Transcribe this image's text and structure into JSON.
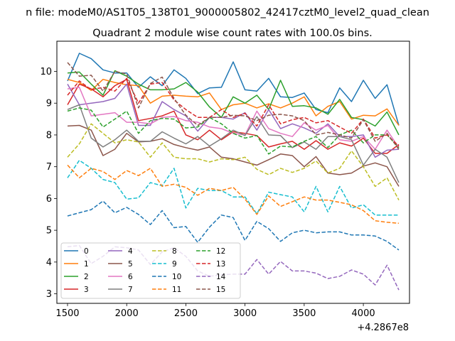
{
  "chart_data": {
    "type": "line",
    "suptitle": "n file: modeM0/AS1T05_138T01_9000005802_42417cztM0_level2_quad_clean",
    "title": "Quadrant 2 module wise count rates with 100.0s bins.",
    "xlabel": "",
    "ylabel": "",
    "x_offset_label": "+4.2867e8",
    "xlim": [
      1410,
      4390
    ],
    "ylim": [
      2.7,
      10.95
    ],
    "xticks": [
      1500,
      2000,
      2500,
      3000,
      3500,
      4000
    ],
    "xtick_labels": [
      "1500",
      "2000",
      "2500",
      "3000",
      "3500",
      "4000"
    ],
    "yticks": [
      3,
      4,
      5,
      6,
      7,
      8,
      9,
      10
    ],
    "ytick_labels": [
      "3",
      "4",
      "5",
      "6",
      "7",
      "8",
      "9",
      "10"
    ],
    "grid": false,
    "legend_placement": "lower-left",
    "legend_columns": 4,
    "x": [
      1500,
      1600,
      1700,
      1800,
      1900,
      2000,
      2100,
      2200,
      2300,
      2400,
      2500,
      2600,
      2700,
      2800,
      2900,
      3000,
      3100,
      3200,
      3300,
      3400,
      3500,
      3600,
      3700,
      3800,
      3900,
      4000,
      4100,
      4200,
      4300
    ],
    "series": [
      {
        "name": "0",
        "color": "#1f77b4",
        "dash": "solid",
        "values": [
          9.7,
          10.57,
          10.4,
          10.05,
          9.95,
          9.95,
          9.5,
          9.83,
          9.55,
          10.05,
          9.78,
          9.3,
          9.48,
          9.5,
          10.3,
          9.42,
          9.38,
          9.78,
          9.2,
          9.18,
          9.32,
          8.8,
          8.7,
          9.48,
          9.05,
          9.72,
          9.15,
          9.58,
          8.3
        ]
      },
      {
        "name": "1",
        "color": "#ff7f0e",
        "dash": "solid",
        "values": [
          9.75,
          9.65,
          9.4,
          9.75,
          9.65,
          9.58,
          9.55,
          9.0,
          9.22,
          9.25,
          9.22,
          9.2,
          9.32,
          8.8,
          8.95,
          9.0,
          8.85,
          8.98,
          8.85,
          9.0,
          9.2,
          8.6,
          8.9,
          9.05,
          8.5,
          8.62,
          8.6,
          8.82,
          8.3
        ]
      },
      {
        "name": "2",
        "color": "#2ca02c",
        "dash": "solid",
        "values": [
          9.95,
          9.98,
          9.6,
          9.25,
          10.02,
          9.85,
          9.6,
          9.42,
          9.42,
          9.45,
          9.65,
          9.35,
          8.88,
          8.55,
          9.2,
          9.0,
          9.25,
          8.8,
          9.72,
          8.9,
          8.92,
          8.85,
          8.65,
          9.12,
          8.55,
          8.48,
          8.28,
          8.72,
          8.0
        ]
      },
      {
        "name": "3",
        "color": "#d62728",
        "dash": "solid",
        "values": [
          8.95,
          9.6,
          9.45,
          9.2,
          9.55,
          9.75,
          8.45,
          8.52,
          8.6,
          8.75,
          8.0,
          7.85,
          8.15,
          7.85,
          8.1,
          8.05,
          7.98,
          7.62,
          7.72,
          7.8,
          7.55,
          7.82,
          7.55,
          7.75,
          7.65,
          7.9,
          7.42,
          7.42,
          7.7
        ]
      },
      {
        "name": "4",
        "color": "#9467bd",
        "dash": "solid",
        "values": [
          9.6,
          8.95,
          9.0,
          9.05,
          9.15,
          9.6,
          8.3,
          8.3,
          9.05,
          8.8,
          8.6,
          8.12,
          8.55,
          8.55,
          8.5,
          8.7,
          8.15,
          8.8,
          8.2,
          8.35,
          8.22,
          8.05,
          8.35,
          7.95,
          7.95,
          8.0,
          7.3,
          7.52,
          7.55
        ]
      },
      {
        "name": "5",
        "color": "#8c564b",
        "dash": "solid",
        "values": [
          8.28,
          8.3,
          8.15,
          7.35,
          7.55,
          8.05,
          7.78,
          7.8,
          7.88,
          7.7,
          7.6,
          7.52,
          7.62,
          7.3,
          7.25,
          7.15,
          7.05,
          7.22,
          7.4,
          7.35,
          7.0,
          7.32,
          6.8,
          6.75,
          6.8,
          7.02,
          7.12,
          7.0,
          6.38
        ]
      },
      {
        "name": "6",
        "color": "#e377c2",
        "dash": "solid",
        "values": [
          9.45,
          9.5,
          8.6,
          8.65,
          8.7,
          8.4,
          8.4,
          8.35,
          8.55,
          8.58,
          8.45,
          8.4,
          8.25,
          8.2,
          8.05,
          8.0,
          8.75,
          8.2,
          8.05,
          7.95,
          8.38,
          8.15,
          8.3,
          7.85,
          7.8,
          7.95,
          7.55,
          8.15,
          7.6
        ]
      },
      {
        "name": "7",
        "color": "#7f7f7f",
        "dash": "solid",
        "values": [
          8.8,
          8.95,
          7.9,
          7.62,
          7.85,
          8.15,
          7.8,
          7.8,
          8.1,
          7.9,
          7.72,
          7.95,
          7.65,
          7.88,
          8.15,
          7.98,
          8.58,
          8.0,
          7.98,
          7.6,
          7.78,
          7.55,
          7.95,
          7.95,
          7.85,
          7.05,
          7.55,
          7.3,
          6.5
        ]
      },
      {
        "name": "8",
        "color": "#bcbd22",
        "dash": "dashed",
        "values": [
          7.3,
          7.72,
          8.35,
          8.05,
          7.75,
          7.85,
          7.78,
          7.3,
          7.75,
          7.3,
          7.25,
          7.25,
          7.15,
          7.25,
          7.22,
          7.3,
          6.92,
          6.75,
          6.95,
          6.82,
          6.95,
          7.18,
          6.8,
          6.95,
          7.5,
          7.0,
          6.38,
          6.65,
          5.95
        ]
      },
      {
        "name": "9",
        "color": "#17becf",
        "dash": "dashed",
        "values": [
          6.65,
          7.2,
          6.95,
          6.6,
          6.5,
          5.98,
          6.02,
          6.5,
          6.4,
          6.95,
          5.7,
          6.32,
          6.25,
          6.25,
          6.05,
          6.05,
          5.52,
          6.2,
          6.12,
          6.05,
          5.58,
          6.38,
          5.58,
          6.38,
          5.7,
          5.8,
          5.48,
          5.48,
          5.48
        ]
      },
      {
        "name": "10",
        "color": "#1f77b4",
        "dash": "dashed",
        "values": [
          5.45,
          5.55,
          5.65,
          5.92,
          5.55,
          5.72,
          5.5,
          5.18,
          5.62,
          5.08,
          5.12,
          4.62,
          5.1,
          5.48,
          5.4,
          4.68,
          5.28,
          5.05,
          4.65,
          4.92,
          5.0,
          4.92,
          4.95,
          4.95,
          4.85,
          4.85,
          4.82,
          4.65,
          4.38
        ]
      },
      {
        "name": "11",
        "color": "#ff7f0e",
        "dash": "dashed",
        "values": [
          7.05,
          6.65,
          6.95,
          6.85,
          6.6,
          6.88,
          6.72,
          6.95,
          6.38,
          6.45,
          6.35,
          6.1,
          6.32,
          6.25,
          6.35,
          5.98,
          5.5,
          6.08,
          5.75,
          5.9,
          6.05,
          5.95,
          5.95,
          5.88,
          5.8,
          5.62,
          5.3,
          5.25,
          5.22
        ]
      },
      {
        "name": "12",
        "color": "#2ca02c",
        "dash": "dashed",
        "values": [
          8.75,
          8.85,
          8.78,
          8.25,
          8.5,
          8.75,
          8.05,
          8.45,
          8.52,
          8.5,
          8.22,
          8.25,
          8.55,
          8.35,
          8.05,
          7.9,
          7.98,
          7.4,
          7.65,
          7.62,
          7.8,
          7.95,
          7.6,
          8.0,
          8.15,
          7.75,
          8.0,
          8.0,
          7.6
        ]
      },
      {
        "name": "13",
        "color": "#d62728",
        "dash": "dashed",
        "values": [
          9.25,
          9.7,
          9.42,
          9.5,
          9.38,
          9.78,
          9.0,
          9.6,
          9.65,
          9.1,
          8.8,
          8.55,
          8.55,
          8.8,
          8.55,
          8.68,
          8.28,
          8.95,
          8.35,
          8.48,
          8.55,
          8.38,
          8.45,
          8.25,
          8.05,
          8.5,
          7.9,
          8.0,
          7.65
        ]
      },
      {
        "name": "14",
        "color": "#9467bd",
        "dash": "dashed",
        "values": [
          4.48,
          4.52,
          3.95,
          4.18,
          4.48,
          4.45,
          4.38,
          3.92,
          4.32,
          4.45,
          4.18,
          3.72,
          3.55,
          3.6,
          3.62,
          3.62,
          4.08,
          3.62,
          4.02,
          3.72,
          3.72,
          3.65,
          3.48,
          3.55,
          3.75,
          3.62,
          3.28,
          3.9,
          3.12
        ]
      },
      {
        "name": "15",
        "color": "#8c564b",
        "dash": "dashed",
        "values": [
          10.28,
          9.85,
          9.88,
          9.38,
          10.0,
          9.92,
          8.85,
          9.62,
          9.82,
          9.15,
          8.62,
          8.3,
          8.55,
          8.55,
          8.62,
          8.6,
          8.45,
          8.62,
          8.65,
          8.6,
          8.45,
          8.0,
          8.08,
          8.0,
          7.9,
          8.48,
          7.8,
          8.05,
          7.55
        ]
      }
    ]
  }
}
